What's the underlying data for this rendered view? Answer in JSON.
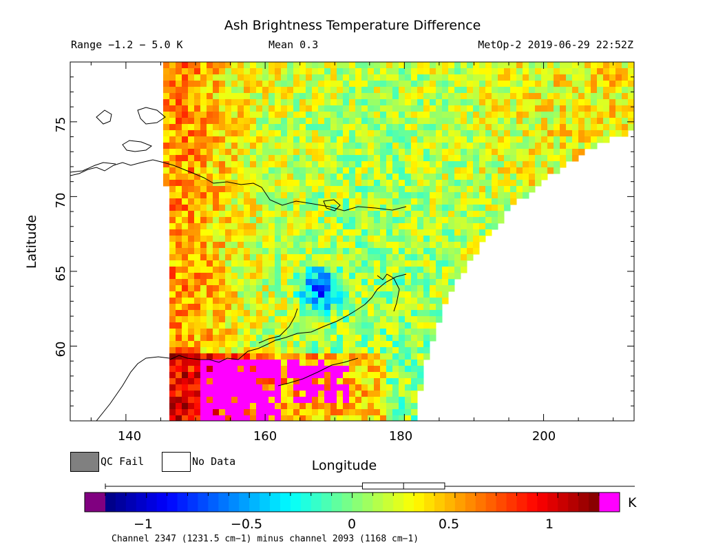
{
  "title": "Ash Brightness Temperature Difference",
  "header": {
    "range": "Range −1.2 − 5.0 K",
    "mean": "Mean 0.3",
    "satellite_time": "MetOp-2 2019-06-29 22:52Z"
  },
  "axes": {
    "xlabel": "Longitude",
    "ylabel": "Latitude",
    "x_range": [
      132,
      213
    ],
    "y_range": [
      55,
      79
    ],
    "x_ticks": [
      "140",
      "160",
      "180",
      "200"
    ],
    "x_tick_values": [
      140,
      160,
      180,
      200
    ],
    "y_ticks": [
      "60",
      "65",
      "70",
      "75"
    ],
    "y_tick_values": [
      60,
      65,
      70,
      75
    ]
  },
  "legend": {
    "qc_fail": "QC Fail",
    "no_data": "No Data",
    "qc_fail_color": "#808080",
    "no_data_color": "#ffffff"
  },
  "colorbar": {
    "ticks": [
      "−1",
      "−0.5",
      "0",
      "0.5",
      "1"
    ],
    "tick_values": [
      -1,
      -0.5,
      0,
      0.5,
      1
    ],
    "range": [
      -1.2,
      1.2
    ],
    "unit": "K",
    "low_color": "#800080",
    "high_color": "#ff00ff",
    "box_plot": {
      "min": -1.2,
      "q1": 0.05,
      "median": 0.25,
      "q3": 0.45,
      "max": 1.4
    }
  },
  "caption": "Channel 2347 (1231.5 cm−1) minus channel 2093 (1168 cm−1)",
  "chart_data": {
    "type": "heatmap",
    "title": "Ash Brightness Temperature Difference",
    "xlabel": "Longitude",
    "ylabel": "Latitude",
    "xlim": [
      132,
      213
    ],
    "ylim": [
      55,
      79
    ],
    "value_range": [
      -1.2,
      5.0
    ],
    "mean": 0.3,
    "units": "K",
    "features": [
      {
        "name": "high BTD (>1.2 K)",
        "lon_range": [
          152,
          172
        ],
        "lat_range": [
          55,
          58.5
        ]
      },
      {
        "name": "low BTD (~ -1 K)",
        "lon_range": [
          164,
          170
        ],
        "lat_range": [
          63,
          64.5
        ]
      }
    ]
  }
}
